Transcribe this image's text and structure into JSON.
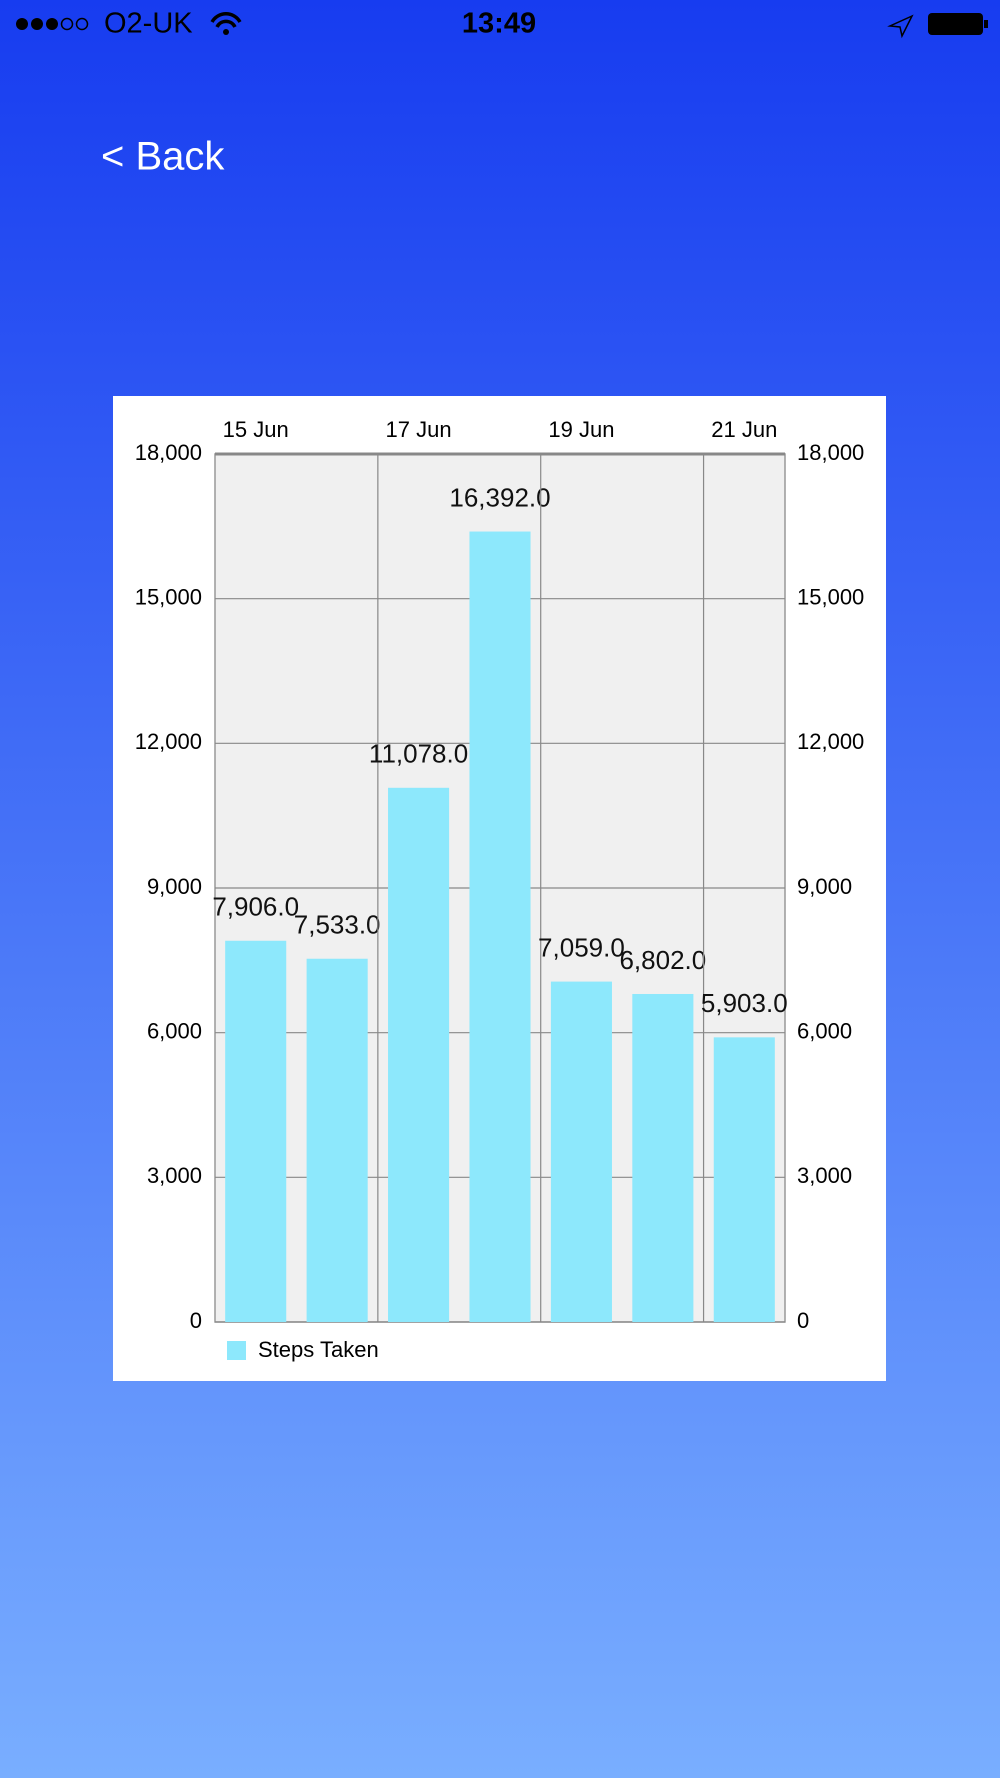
{
  "status_bar": {
    "carrier": "O2-UK",
    "time": "13:49"
  },
  "nav": {
    "back": "< Back"
  },
  "chart_data": {
    "type": "bar",
    "categories": [
      "15 Jun",
      null,
      "17 Jun",
      null,
      "19 Jun",
      null,
      "21 Jun"
    ],
    "series": [
      {
        "name": "Steps Taken",
        "color": "#8de8fc",
        "values": [
          7906,
          7533,
          11078,
          16392,
          7059,
          6802,
          5903
        ],
        "value_labels": [
          "7,906.0",
          "7,533.0",
          "11,078.0",
          "16,392.0",
          "7,059.0",
          "6,802.0",
          "5,903.0"
        ]
      }
    ],
    "ylim": [
      0,
      18000
    ],
    "yticks": [
      0,
      {
        "value": 3000,
        "label": "3,000"
      },
      {
        "value": 6000,
        "label": "6,000"
      },
      {
        "value": 9000,
        "label": "9,000"
      },
      {
        "value": 12000,
        "label": "12,000"
      },
      {
        "value": 15000,
        "label": "15,000"
      },
      {
        "value": 18000,
        "label": "18,000"
      }
    ],
    "y2lim": [
      0,
      18000
    ],
    "y2ticks": [
      0,
      {
        "value": 3000,
        "label": "3,000"
      },
      {
        "value": 6000,
        "label": "6,000"
      },
      {
        "value": 9000,
        "label": "9,000"
      },
      {
        "value": 12000,
        "label": "12,000"
      },
      {
        "value": 15000,
        "label": "15,000"
      },
      {
        "value": 18000,
        "label": "18,000"
      }
    ],
    "grid": true,
    "legend": "bottom-left"
  }
}
